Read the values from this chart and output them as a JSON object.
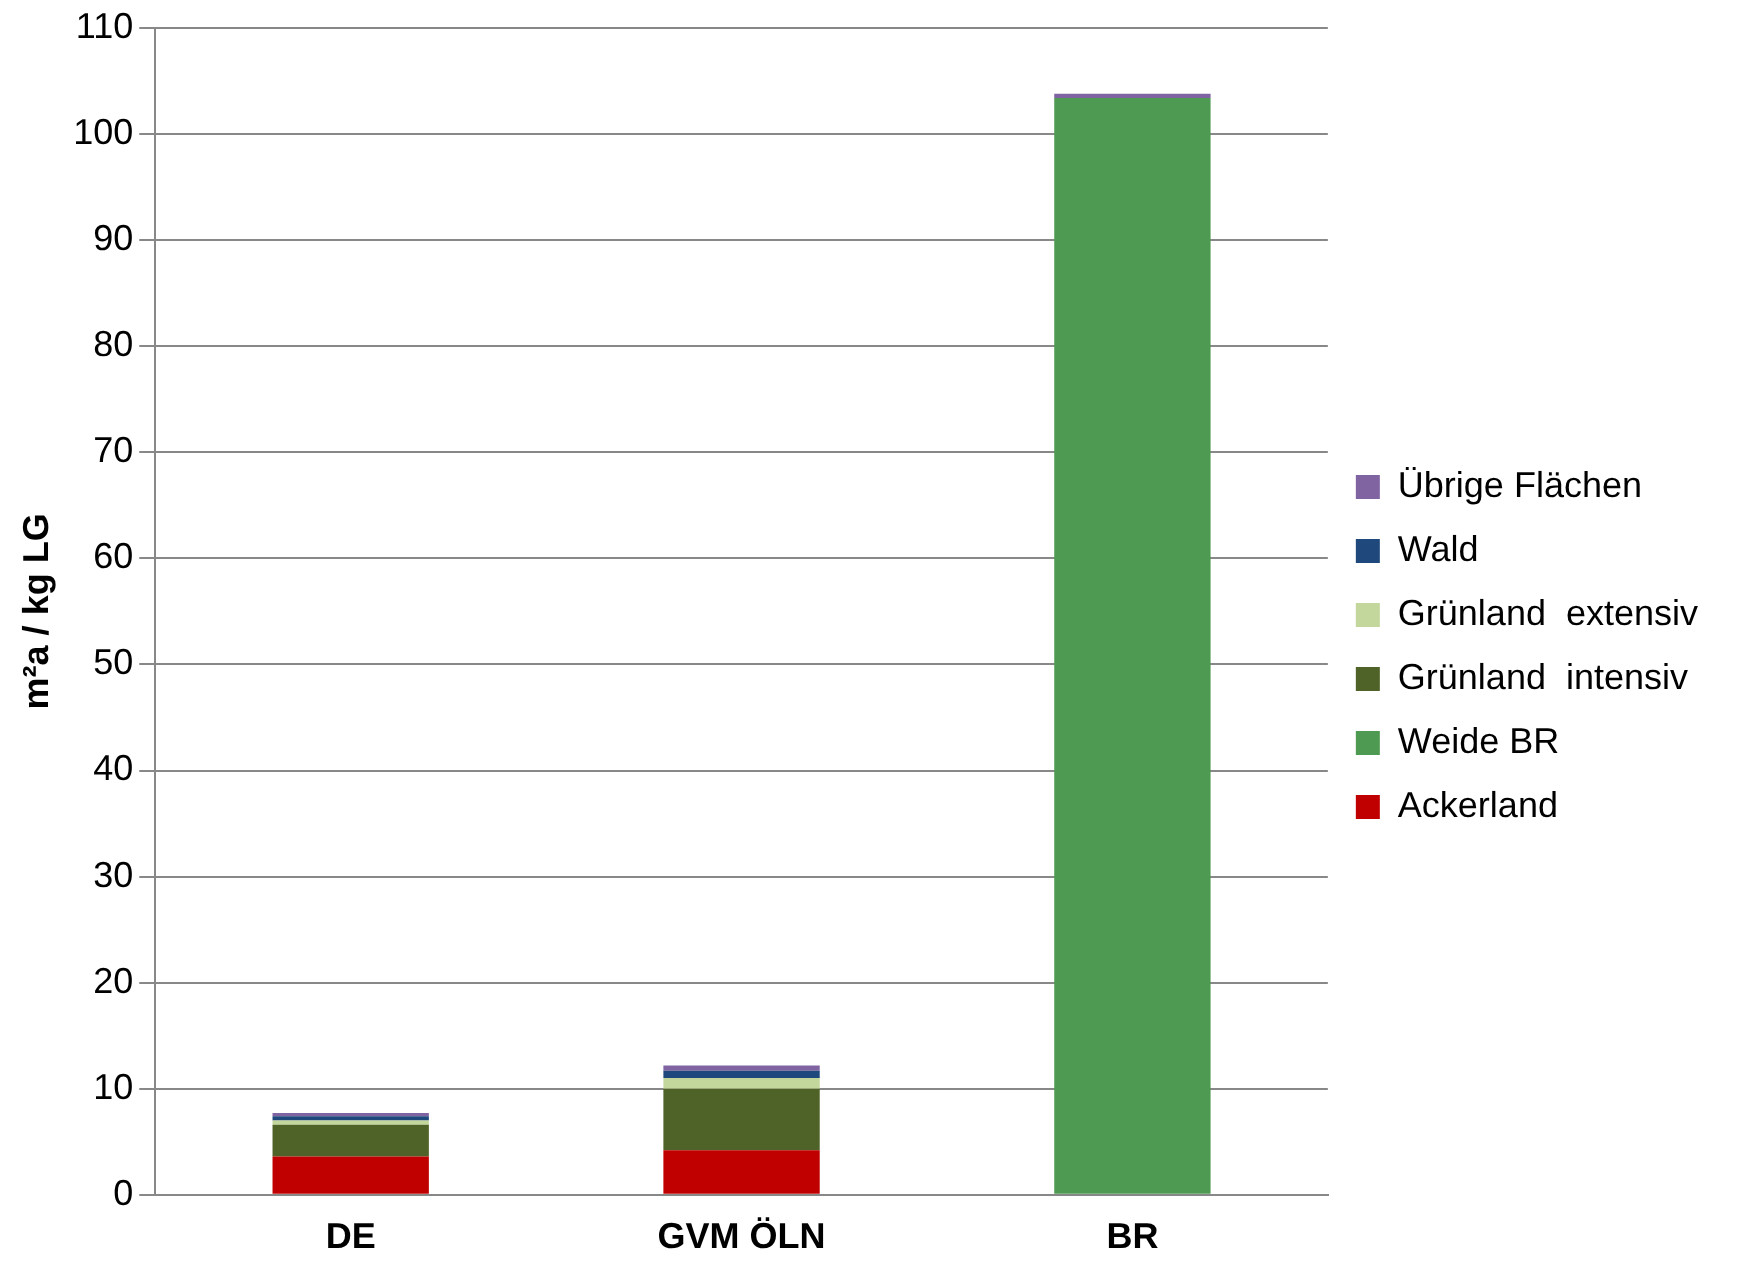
{
  "chart_data": {
    "type": "bar",
    "stacked": true,
    "ylabel": "m²a / kg LG",
    "categories": [
      "DE",
      "GVM ÖLN",
      "BR"
    ],
    "series": [
      {
        "name": "Ackerland",
        "color": "#c00000",
        "values": [
          3.6,
          4.2,
          0
        ]
      },
      {
        "name": "Weide BR",
        "color": "#4f9a52",
        "values": [
          0,
          0,
          103.4
        ]
      },
      {
        "name": "Grünland  intensiv",
        "color": "#4f6228",
        "values": [
          3.0,
          5.8,
          0
        ]
      },
      {
        "name": "Grünland  extensiv",
        "color": "#c3d69b",
        "values": [
          0.4,
          1.0,
          0
        ]
      },
      {
        "name": "Wald",
        "color": "#1f497d",
        "values": [
          0.4,
          0.7,
          0
        ]
      },
      {
        "name": "Übrige Flächen",
        "color": "#8064a2",
        "values": [
          0.3,
          0.5,
          0.4
        ]
      }
    ],
    "ylim": [
      0,
      110
    ],
    "yticks": [
      0,
      10,
      20,
      30,
      40,
      50,
      60,
      70,
      80,
      90,
      100,
      110
    ],
    "grid": "y",
    "legend": "right"
  }
}
